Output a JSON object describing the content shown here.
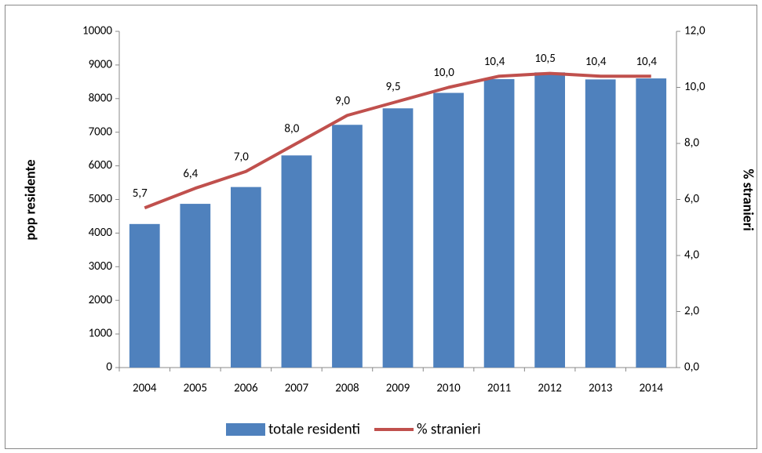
{
  "chart_data": {
    "type": "bar",
    "categories": [
      "2004",
      "2005",
      "2006",
      "2007",
      "2008",
      "2009",
      "2010",
      "2011",
      "2012",
      "2013",
      "2014"
    ],
    "y_label": "pop residente",
    "y2_label": "% stranieri",
    "ylim": [
      0,
      10000
    ],
    "yticks": [
      0,
      1000,
      2000,
      3000,
      4000,
      5000,
      6000,
      7000,
      8000,
      9000,
      10000
    ],
    "y2lim": [
      0,
      12
    ],
    "y2ticks": [
      {
        "value": 0,
        "label": "0,0"
      },
      {
        "value": 2,
        "label": "2,0"
      },
      {
        "value": 4,
        "label": "4,0"
      },
      {
        "value": 6,
        "label": "6,0"
      },
      {
        "value": 8,
        "label": "8,0"
      },
      {
        "value": 10,
        "label": "10,0"
      },
      {
        "value": 12,
        "label": "12,0"
      }
    ],
    "series": [
      {
        "name": "totale residenti",
        "type": "bar",
        "color": "#4f81bd",
        "values": [
          4270,
          4870,
          5370,
          6310,
          7220,
          7710,
          8170,
          8580,
          8780,
          8570,
          8600
        ]
      },
      {
        "name": "% stranieri",
        "type": "line",
        "axis": "y2",
        "color": "#c0504d",
        "values": [
          5.7,
          6.4,
          7.0,
          8.0,
          9.0,
          9.5,
          10.0,
          10.4,
          10.5,
          10.4,
          10.4
        ],
        "value_labels": [
          "5,7",
          "6,4",
          "7,0",
          "8,0",
          "9,0",
          "9,5",
          "10,0",
          "10,4",
          "10,5",
          "10,4",
          "10,4"
        ]
      }
    ],
    "legend": "bottom"
  }
}
